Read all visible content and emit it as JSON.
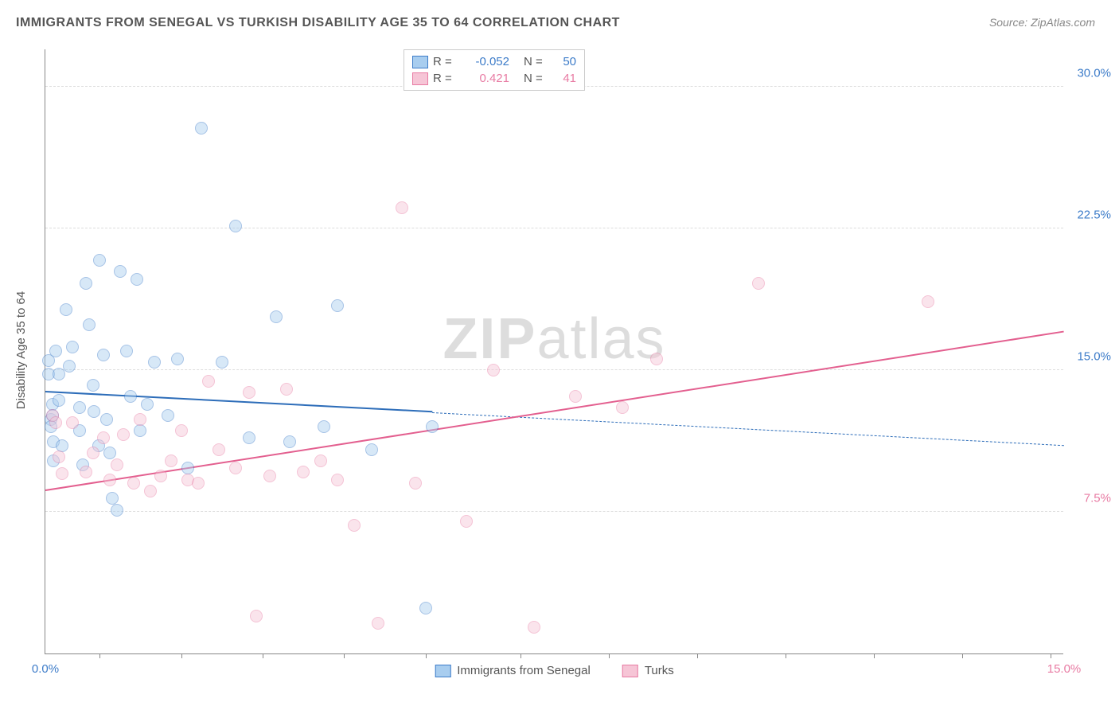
{
  "title": "IMMIGRANTS FROM SENEGAL VS TURKISH DISABILITY AGE 35 TO 64 CORRELATION CHART",
  "source_label": "Source: ",
  "source_name": "ZipAtlas.com",
  "ylabel": "Disability Age 35 to 64",
  "watermark_bold": "ZIP",
  "watermark_thin": "atlas",
  "chart": {
    "type": "scatter",
    "background_color": "#ffffff",
    "grid_color": "#dddddd",
    "axis_color": "#888888",
    "xlim": [
      0,
      15
    ],
    "ylim": [
      0,
      32
    ],
    "x_ticks": [
      0.8,
      2.0,
      3.2,
      4.4,
      5.6,
      7.0,
      8.3,
      9.6,
      10.9,
      12.2,
      13.5,
      14.8
    ],
    "x_tick_labels": [
      {
        "x": 0,
        "text": "0.0%",
        "color": "#3d7cc9"
      },
      {
        "x": 15,
        "text": "15.0%",
        "color": "#e87ba3"
      }
    ],
    "y_gridlines": [
      7.5,
      15.0,
      22.5,
      30.0
    ],
    "y_tick_labels": [
      {
        "y": 7.5,
        "text": "7.5%",
        "color": "#e87ba3"
      },
      {
        "y": 15.0,
        "text": "15.0%",
        "color": "#3d7cc9"
      },
      {
        "y": 22.5,
        "text": "22.5%",
        "color": "#3d7cc9"
      },
      {
        "y": 30.0,
        "text": "30.0%",
        "color": "#3d7cc9"
      }
    ],
    "marker_radius": 8,
    "marker_opacity": 0.45,
    "series": [
      {
        "name": "Immigrants from Senegal",
        "fill": "#a8cdef",
        "stroke": "#3d7cc9",
        "r_label": "R = ",
        "r_value": "-0.052",
        "n_label": "N = ",
        "n_value": "50",
        "trend": {
          "x1": 0,
          "y1": 13.8,
          "x2": 15,
          "y2": 11.0,
          "solid_until_x": 5.7,
          "color": "#2d6db9",
          "width": 2.4
        },
        "points": [
          [
            0.05,
            15.5
          ],
          [
            0.05,
            14.8
          ],
          [
            0.08,
            12.4
          ],
          [
            0.08,
            12.0
          ],
          [
            0.1,
            13.2
          ],
          [
            0.1,
            12.6
          ],
          [
            0.12,
            11.2
          ],
          [
            0.12,
            10.2
          ],
          [
            0.15,
            16.0
          ],
          [
            0.2,
            14.8
          ],
          [
            0.2,
            13.4
          ],
          [
            0.25,
            11.0
          ],
          [
            0.3,
            18.2
          ],
          [
            0.35,
            15.2
          ],
          [
            0.4,
            16.2
          ],
          [
            0.5,
            13.0
          ],
          [
            0.5,
            11.8
          ],
          [
            0.55,
            10.0
          ],
          [
            0.6,
            19.6
          ],
          [
            0.65,
            17.4
          ],
          [
            0.7,
            14.2
          ],
          [
            0.72,
            12.8
          ],
          [
            0.78,
            11.0
          ],
          [
            0.8,
            20.8
          ],
          [
            0.85,
            15.8
          ],
          [
            0.9,
            12.4
          ],
          [
            0.95,
            10.6
          ],
          [
            0.98,
            8.2
          ],
          [
            1.05,
            7.6
          ],
          [
            1.1,
            20.2
          ],
          [
            1.2,
            16.0
          ],
          [
            1.25,
            13.6
          ],
          [
            1.35,
            19.8
          ],
          [
            1.4,
            11.8
          ],
          [
            1.5,
            13.2
          ],
          [
            1.6,
            15.4
          ],
          [
            1.8,
            12.6
          ],
          [
            1.95,
            15.6
          ],
          [
            2.1,
            9.8
          ],
          [
            2.3,
            27.8
          ],
          [
            2.6,
            15.4
          ],
          [
            2.8,
            22.6
          ],
          [
            3.0,
            11.4
          ],
          [
            3.4,
            17.8
          ],
          [
            3.6,
            11.2
          ],
          [
            4.1,
            12.0
          ],
          [
            4.3,
            18.4
          ],
          [
            4.8,
            10.8
          ],
          [
            5.6,
            2.4
          ],
          [
            5.7,
            12.0
          ]
        ]
      },
      {
        "name": "Turks",
        "fill": "#f6c5d6",
        "stroke": "#e87ba3",
        "r_label": "R = ",
        "r_value": "0.421",
        "n_label": "N = ",
        "n_value": "41",
        "trend": {
          "x1": 0,
          "y1": 8.6,
          "x2": 15,
          "y2": 17.0,
          "solid_until_x": 15,
          "color": "#e35f8f",
          "width": 2.4
        },
        "points": [
          [
            0.1,
            12.6
          ],
          [
            0.15,
            12.2
          ],
          [
            0.2,
            10.4
          ],
          [
            0.25,
            9.5
          ],
          [
            0.4,
            12.2
          ],
          [
            0.6,
            9.6
          ],
          [
            0.7,
            10.6
          ],
          [
            0.85,
            11.4
          ],
          [
            0.95,
            9.2
          ],
          [
            1.05,
            10.0
          ],
          [
            1.15,
            11.6
          ],
          [
            1.3,
            9.0
          ],
          [
            1.4,
            12.4
          ],
          [
            1.55,
            8.6
          ],
          [
            1.7,
            9.4
          ],
          [
            1.85,
            10.2
          ],
          [
            2.0,
            11.8
          ],
          [
            2.1,
            9.2
          ],
          [
            2.25,
            9.0
          ],
          [
            2.4,
            14.4
          ],
          [
            2.55,
            10.8
          ],
          [
            2.8,
            9.8
          ],
          [
            3.0,
            13.8
          ],
          [
            3.1,
            2.0
          ],
          [
            3.3,
            9.4
          ],
          [
            3.55,
            14.0
          ],
          [
            3.8,
            9.6
          ],
          [
            4.05,
            10.2
          ],
          [
            4.3,
            9.2
          ],
          [
            4.55,
            6.8
          ],
          [
            4.9,
            1.6
          ],
          [
            5.25,
            23.6
          ],
          [
            5.45,
            9.0
          ],
          [
            6.2,
            7.0
          ],
          [
            6.6,
            15.0
          ],
          [
            7.2,
            1.4
          ],
          [
            7.8,
            13.6
          ],
          [
            8.5,
            13.0
          ],
          [
            9.0,
            15.6
          ],
          [
            10.5,
            19.6
          ],
          [
            13.0,
            18.6
          ]
        ]
      }
    ]
  }
}
